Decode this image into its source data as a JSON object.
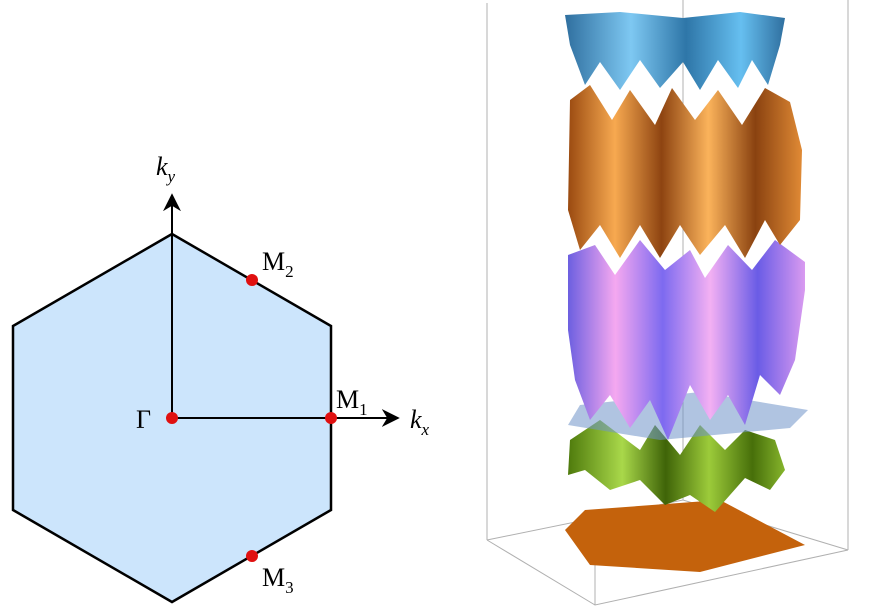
{
  "labels": {
    "ky": {
      "main": "k",
      "sub": "y"
    },
    "kx": {
      "main": "k",
      "sub": "x"
    },
    "gamma": {
      "main": "Γ"
    },
    "m1": {
      "main": "M",
      "sub": "1"
    },
    "m2": {
      "main": "M",
      "sub": "2"
    },
    "m3": {
      "main": "M",
      "sub": "3"
    }
  }
}
